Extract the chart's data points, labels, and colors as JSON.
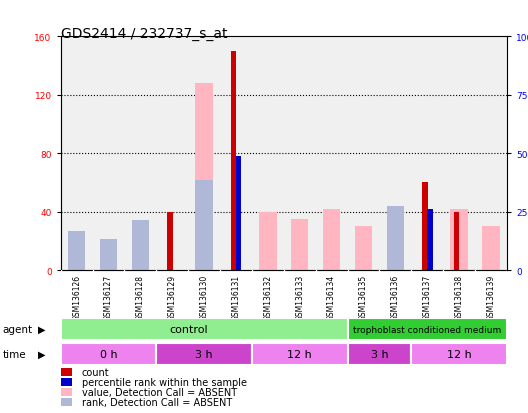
{
  "title": "GDS2414 / 232737_s_at",
  "samples": [
    "GSM136126",
    "GSM136127",
    "GSM136128",
    "GSM136129",
    "GSM136130",
    "GSM136131",
    "GSM136132",
    "GSM136133",
    "GSM136134",
    "GSM136135",
    "GSM136136",
    "GSM136137",
    "GSM136138",
    "GSM136139"
  ],
  "count": [
    0,
    0,
    0,
    40,
    0,
    150,
    0,
    0,
    0,
    0,
    0,
    60,
    40,
    0
  ],
  "percentile_rank": [
    0,
    0,
    0,
    0,
    0,
    78,
    0,
    0,
    0,
    0,
    0,
    42,
    0,
    0
  ],
  "value_absent": [
    22,
    15,
    32,
    0,
    128,
    0,
    40,
    35,
    42,
    30,
    42,
    0,
    42,
    30
  ],
  "rank_absent": [
    27,
    21,
    34,
    0,
    62,
    0,
    0,
    0,
    0,
    0,
    44,
    0,
    0,
    0
  ],
  "ylim": [
    0,
    160
  ],
  "y2lim": [
    0,
    100
  ],
  "yticks": [
    0,
    40,
    80,
    120,
    160
  ],
  "y2ticks": [
    0,
    25,
    50,
    75,
    100
  ],
  "color_count": "#cc0000",
  "color_rank": "#0000cc",
  "color_value_absent": "#ffb6c1",
  "color_rank_absent": "#b0b8d8",
  "tick_fontsize": 6.5,
  "title_fontsize": 10,
  "agent_control_color": "#98e898",
  "agent_tcm_color": "#50cc50",
  "time_colors": [
    "#ee82ee",
    "#cc44cc",
    "#ee82ee",
    "#cc44cc",
    "#ee82ee"
  ]
}
